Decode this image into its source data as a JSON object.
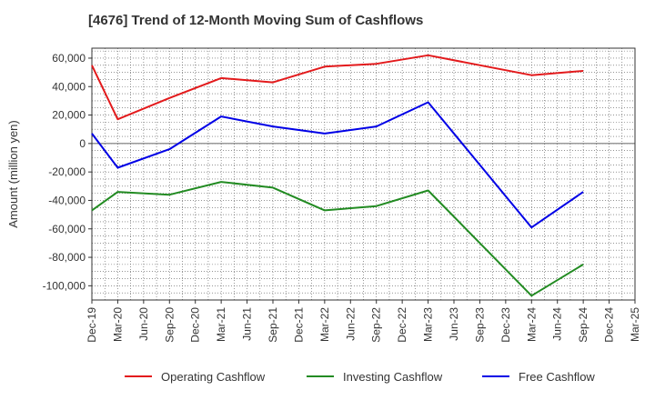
{
  "chart_data": {
    "type": "line",
    "title": "[4676]  Trend of 12-Month Moving Sum of Cashflows",
    "ylabel": "Amount (million yen)",
    "xlabel": "",
    "x_ticks": [
      "Dec-19",
      "Mar-20",
      "Jun-20",
      "Sep-20",
      "Dec-20",
      "Mar-21",
      "Jun-21",
      "Sep-21",
      "Dec-21",
      "Mar-22",
      "Jun-22",
      "Sep-22",
      "Dec-22",
      "Mar-23",
      "Jun-23",
      "Sep-23",
      "Dec-23",
      "Mar-24",
      "Jun-24",
      "Sep-24",
      "Dec-24",
      "Mar-25"
    ],
    "y_ticks": [
      60000,
      40000,
      20000,
      0,
      -20000,
      -40000,
      -60000,
      -80000,
      -100000
    ],
    "y_tick_labels": [
      "60,000",
      "40,000",
      "20,000",
      "0",
      "-20,000",
      "-40,000",
      "-60,000",
      "-80,000",
      "-100,000"
    ],
    "ylim": [
      -110000,
      67000
    ],
    "grid": true,
    "legend_position": "bottom",
    "series": [
      {
        "name": "Operating Cashflow",
        "color": "#e31a1c",
        "points": [
          [
            "Dec-19",
            55000
          ],
          [
            "Mar-20",
            17000
          ],
          [
            "Sep-20",
            32000
          ],
          [
            "Mar-21",
            46000
          ],
          [
            "Sep-21",
            43000
          ],
          [
            "Mar-22",
            54000
          ],
          [
            "Sep-22",
            56000
          ],
          [
            "Mar-23",
            62000
          ],
          [
            "Mar-24",
            48000
          ],
          [
            "Sep-24",
            51000
          ]
        ]
      },
      {
        "name": "Investing Cashflow",
        "color": "#228b22",
        "points": [
          [
            "Dec-19",
            -47000
          ],
          [
            "Mar-20",
            -34000
          ],
          [
            "Sep-20",
            -36000
          ],
          [
            "Mar-21",
            -27000
          ],
          [
            "Sep-21",
            -31000
          ],
          [
            "Mar-22",
            -47000
          ],
          [
            "Sep-22",
            -44000
          ],
          [
            "Mar-23",
            -33000
          ],
          [
            "Mar-24",
            -107000
          ],
          [
            "Sep-24",
            -85000
          ]
        ]
      },
      {
        "name": "Free Cashflow",
        "color": "#0000e6",
        "points": [
          [
            "Dec-19",
            7000
          ],
          [
            "Mar-20",
            -17000
          ],
          [
            "Sep-20",
            -4000
          ],
          [
            "Mar-21",
            19000
          ],
          [
            "Sep-21",
            12000
          ],
          [
            "Mar-22",
            7000
          ],
          [
            "Sep-22",
            12000
          ],
          [
            "Mar-23",
            29000
          ],
          [
            "Mar-24",
            -59000
          ],
          [
            "Sep-24",
            -34000
          ]
        ]
      }
    ]
  }
}
